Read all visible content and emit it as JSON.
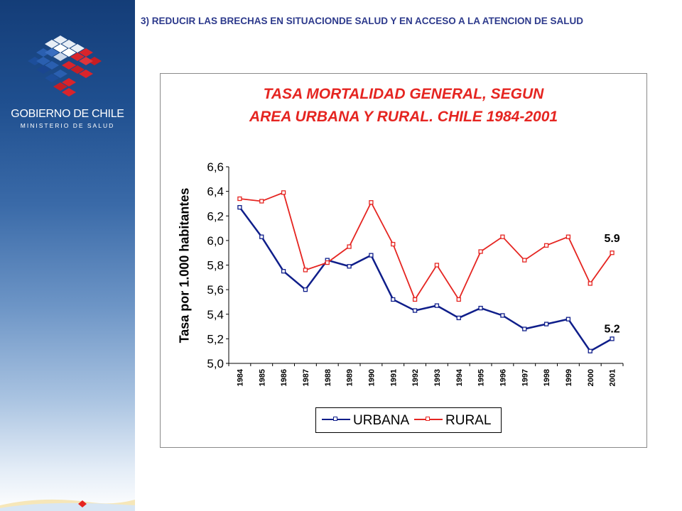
{
  "header": {
    "title": "3) REDUCIR LAS BRECHAS EN SITUACIONDE SALUD Y EN ACCESO A LA ATENCION DE SALUD"
  },
  "sidebar": {
    "gov_name": "GOBIERNO DE CHILE",
    "ministry": "MINISTERIO DE SALUD"
  },
  "colors": {
    "urbana": "#0f1e8a",
    "rural": "#e52521",
    "title": "#e52521",
    "header": "#2d3a8c"
  },
  "chart_data": {
    "type": "line",
    "title_line1": "TASA MORTALIDAD GENERAL, SEGUN",
    "title_line2": "AREA URBANA Y RURAL. CHILE 1984-2001",
    "ylabel": "Tasa por 1.000 habitantes",
    "xlabel": "",
    "ylim": [
      5.0,
      6.6
    ],
    "yticks": [
      "5,0",
      "5,2",
      "5,4",
      "5,6",
      "5,8",
      "6,0",
      "6,2",
      "6,4",
      "6,6"
    ],
    "categories": [
      "1984",
      "1985",
      "1986",
      "1987",
      "1988",
      "1989",
      "1990",
      "1991",
      "1992",
      "1993",
      "1994",
      "1995",
      "1996",
      "1997",
      "1998",
      "1999",
      "2000",
      "2001"
    ],
    "series": [
      {
        "name": "URBANA",
        "values": [
          6.27,
          6.03,
          5.75,
          5.6,
          5.84,
          5.79,
          5.88,
          5.52,
          5.43,
          5.47,
          5.37,
          5.45,
          5.39,
          5.28,
          5.32,
          5.36,
          5.1,
          5.2
        ]
      },
      {
        "name": "RURAL",
        "values": [
          6.34,
          6.32,
          6.39,
          5.76,
          5.82,
          5.95,
          6.31,
          5.97,
          5.52,
          5.8,
          5.52,
          5.91,
          6.03,
          5.84,
          5.96,
          6.03,
          5.65,
          5.9
        ]
      }
    ],
    "annotations": [
      "5.9",
      "5.2"
    ],
    "legend": "bottom-center",
    "grid": false
  }
}
